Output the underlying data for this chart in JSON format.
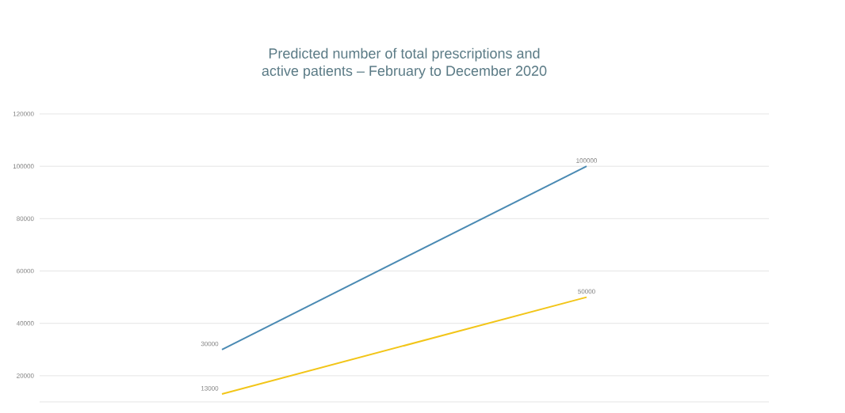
{
  "chart_data": {
    "type": "line",
    "title": "Predicted number of total prescriptions and\nactive patients – February to December 2020",
    "categories": [
      null,
      null
    ],
    "series": [
      {
        "color": "#4a8ab3",
        "values": [
          30000,
          100000
        ]
      },
      {
        "color": "#f2c518",
        "values": [
          13000,
          50000
        ]
      }
    ],
    "ylim": [
      10000,
      120000
    ],
    "yticks": [
      20000,
      40000,
      60000,
      80000,
      100000,
      120000
    ],
    "grid": "y",
    "data_labels": true,
    "marker": "none"
  }
}
